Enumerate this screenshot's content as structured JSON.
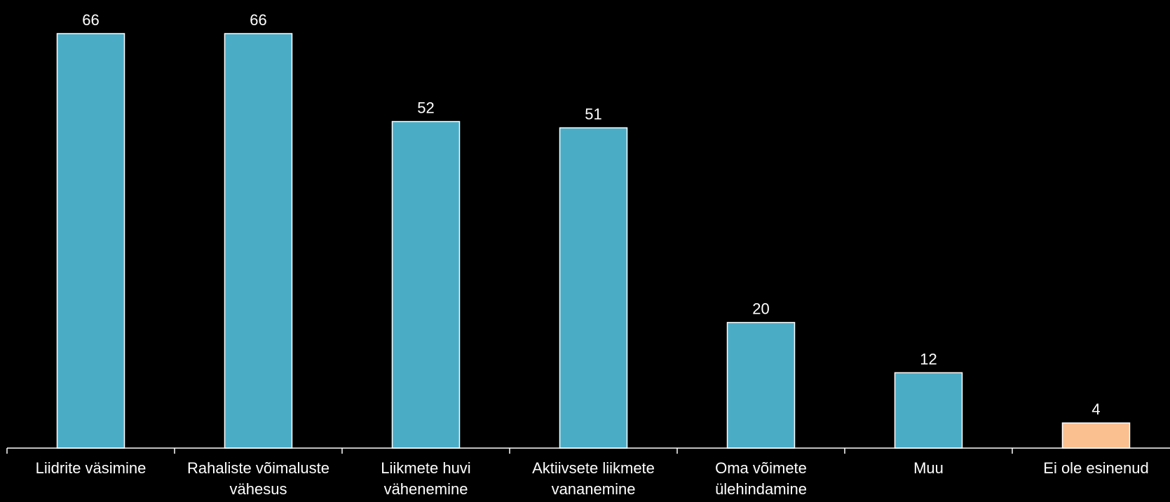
{
  "chart_data": {
    "type": "bar",
    "title": "",
    "xlabel": "",
    "ylabel": "",
    "ylim": [
      0,
      70
    ],
    "grid": false,
    "legend": "none",
    "categories": [
      [
        "Liidrite väsimine"
      ],
      [
        "Rahaliste võimaluste",
        "vähesus"
      ],
      [
        "Liikmete huvi",
        "vähenemine"
      ],
      [
        "Aktiivsete liikmete",
        "vananemine"
      ],
      [
        "Oma võimete",
        "ülehindamine"
      ],
      [
        "Muu"
      ],
      [
        "Ei ole esinenud"
      ]
    ],
    "values": [
      66,
      66,
      52,
      51,
      20,
      12,
      4
    ],
    "bar_colors": [
      "#4bacc6",
      "#4bacc6",
      "#4bacc6",
      "#4bacc6",
      "#4bacc6",
      "#4bacc6",
      "#fac090"
    ],
    "bar_outline_color": "#ffffff",
    "axis_color": "#ffffff",
    "text_color": "#ffffff",
    "background_color": "#000000"
  }
}
